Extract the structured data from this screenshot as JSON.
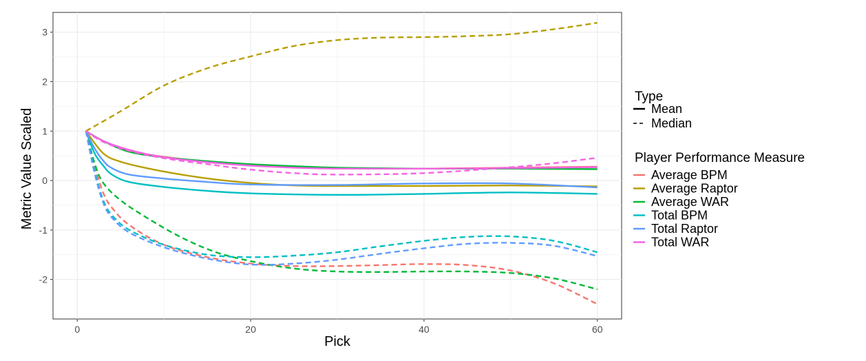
{
  "chart_data": {
    "type": "line",
    "title": "",
    "xlabel": "Pick",
    "ylabel": "Metric Value Scaled",
    "xlim": [
      -2.8,
      62.8
    ],
    "ylim": [
      -2.8,
      3.4
    ],
    "xticks": [
      0,
      20,
      40,
      60
    ],
    "yticks": [
      -2,
      -1,
      0,
      1,
      2,
      3
    ],
    "grid": true,
    "legend_position": "right",
    "legend_linetype": {
      "title": "Type",
      "entries": [
        {
          "label": "Mean",
          "dash": "solid"
        },
        {
          "label": "Median",
          "dash": "dashed"
        }
      ]
    },
    "legend_color": {
      "title": "Player Performance Measure",
      "entries": [
        {
          "label": "Average BPM",
          "color": "#F8766D"
        },
        {
          "label": "Average Raptor",
          "color": "#B79F00"
        },
        {
          "label": "Average WAR",
          "color": "#00BA38"
        },
        {
          "label": "Total BPM",
          "color": "#00BFC4"
        },
        {
          "label": "Total Raptor",
          "color": "#619CFF"
        },
        {
          "label": "Total WAR",
          "color": "#F564E3"
        }
      ]
    },
    "series": [
      {
        "metric": "Average BPM",
        "type": "Mean",
        "color": "#F8766D",
        "dash": "solid",
        "x": [
          1,
          3,
          6,
          10,
          15,
          20,
          25,
          30,
          40,
          50,
          60
        ],
        "y": [
          1,
          0.8,
          0.6,
          0.48,
          0.38,
          0.31,
          0.27,
          0.25,
          0.24,
          0.26,
          0.28
        ]
      },
      {
        "metric": "Average Raptor",
        "type": "Mean",
        "color": "#B79F00",
        "dash": "solid",
        "x": [
          1,
          3,
          5,
          8,
          12,
          16,
          20,
          25,
          30,
          40,
          50,
          60
        ],
        "y": [
          1,
          0.55,
          0.38,
          0.25,
          0.12,
          0.02,
          -0.05,
          -0.1,
          -0.11,
          -0.11,
          -0.1,
          -0.12
        ]
      },
      {
        "metric": "Average WAR",
        "type": "Mean",
        "color": "#00BA38",
        "dash": "solid",
        "x": [
          1,
          3,
          6,
          10,
          15,
          20,
          25,
          30,
          40,
          50,
          60
        ],
        "y": [
          1,
          0.8,
          0.58,
          0.47,
          0.39,
          0.33,
          0.29,
          0.26,
          0.24,
          0.24,
          0.23
        ]
      },
      {
        "metric": "Total BPM",
        "type": "Mean",
        "color": "#00BFC4",
        "dash": "solid",
        "x": [
          1,
          2,
          3,
          4,
          6,
          10,
          15,
          20,
          30,
          40,
          50,
          60
        ],
        "y": [
          1,
          0.55,
          0.3,
          0.12,
          -0.03,
          -0.13,
          -0.21,
          -0.26,
          -0.29,
          -0.27,
          -0.24,
          -0.27
        ]
      },
      {
        "metric": "Total Raptor",
        "type": "Mean",
        "color": "#619CFF",
        "dash": "solid",
        "x": [
          1,
          2,
          3,
          4,
          6,
          10,
          15,
          20,
          30,
          40,
          50,
          60
        ],
        "y": [
          1,
          0.65,
          0.4,
          0.25,
          0.12,
          0.04,
          -0.03,
          -0.08,
          -0.09,
          -0.06,
          -0.06,
          -0.14
        ]
      },
      {
        "metric": "Total WAR",
        "type": "Mean",
        "color": "#F564E3",
        "dash": "solid",
        "x": [
          1,
          3,
          6,
          10,
          15,
          20,
          25,
          30,
          40,
          50,
          60
        ],
        "y": [
          1,
          0.8,
          0.62,
          0.47,
          0.37,
          0.3,
          0.26,
          0.24,
          0.24,
          0.25,
          0.27
        ]
      },
      {
        "metric": "Average BPM",
        "type": "Median",
        "color": "#F8766D",
        "dash": "dashed",
        "x": [
          1,
          2,
          3,
          4,
          6,
          10,
          15,
          20,
          25,
          30,
          35,
          40,
          45,
          50,
          55,
          60
        ],
        "y": [
          1,
          0.3,
          -0.25,
          -0.55,
          -0.9,
          -1.3,
          -1.55,
          -1.68,
          -1.73,
          -1.73,
          -1.71,
          -1.69,
          -1.71,
          -1.82,
          -2.08,
          -2.5
        ]
      },
      {
        "metric": "Average Raptor",
        "type": "Median",
        "color": "#B79F00",
        "dash": "dashed",
        "x": [
          1,
          5,
          10,
          15,
          20,
          25,
          30,
          35,
          40,
          45,
          50,
          55,
          60
        ],
        "y": [
          1,
          1.4,
          1.92,
          2.27,
          2.51,
          2.72,
          2.84,
          2.89,
          2.9,
          2.92,
          2.96,
          3.06,
          3.19
        ]
      },
      {
        "metric": "Average WAR",
        "type": "Median",
        "color": "#00BA38",
        "dash": "dashed",
        "x": [
          1,
          2,
          3,
          5,
          8,
          12,
          16,
          20,
          25,
          30,
          35,
          40,
          45,
          50,
          55,
          60
        ],
        "y": [
          1,
          0.35,
          -0.05,
          -0.4,
          -0.75,
          -1.15,
          -1.45,
          -1.63,
          -1.78,
          -1.84,
          -1.85,
          -1.84,
          -1.84,
          -1.87,
          -1.98,
          -2.2
        ]
      },
      {
        "metric": "Total BPM",
        "type": "Median",
        "color": "#00BFC4",
        "dash": "dashed",
        "x": [
          1,
          2,
          3,
          4,
          6,
          10,
          15,
          20,
          25,
          30,
          35,
          40,
          45,
          50,
          55,
          60
        ],
        "y": [
          1,
          0.2,
          -0.4,
          -0.7,
          -1.0,
          -1.3,
          -1.5,
          -1.55,
          -1.52,
          -1.45,
          -1.33,
          -1.22,
          -1.14,
          -1.13,
          -1.22,
          -1.45
        ]
      },
      {
        "metric": "Total Raptor",
        "type": "Median",
        "color": "#619CFF",
        "dash": "dashed",
        "x": [
          1,
          2,
          3,
          4,
          6,
          10,
          15,
          20,
          25,
          30,
          35,
          40,
          45,
          50,
          55,
          60
        ],
        "y": [
          1,
          0.15,
          -0.45,
          -0.75,
          -1.05,
          -1.35,
          -1.58,
          -1.7,
          -1.68,
          -1.6,
          -1.48,
          -1.37,
          -1.28,
          -1.26,
          -1.32,
          -1.53
        ]
      },
      {
        "metric": "Total WAR",
        "type": "Median",
        "color": "#F564E3",
        "dash": "dashed",
        "x": [
          1,
          3,
          6,
          10,
          15,
          20,
          25,
          30,
          40,
          50,
          55,
          60
        ],
        "y": [
          1,
          0.78,
          0.6,
          0.45,
          0.33,
          0.22,
          0.15,
          0.12,
          0.15,
          0.27,
          0.35,
          0.46
        ]
      }
    ]
  }
}
